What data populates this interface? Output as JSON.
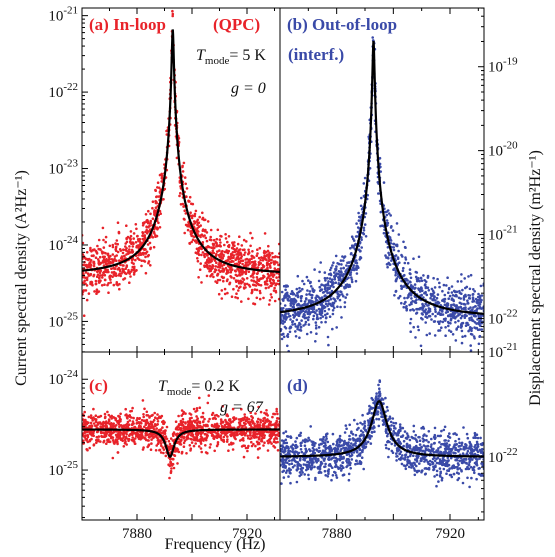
{
  "colors": {
    "in_loop": "#e8232a",
    "out_of_loop": "#3a4aa8",
    "fit": "#000000"
  },
  "texts": {
    "xlabel": "Frequency (Hz)",
    "ylabel_left": "Current spectral density (A²Hz⁻¹)",
    "ylabel_right": "Displacement spectral density (m²Hz⁻¹)",
    "panel_a": "(a) In-loop",
    "panel_a_sub": "(QPC)",
    "panel_b": "(b) Out-of-loop",
    "panel_b_sub": "(interf.)",
    "panel_c": "(c)",
    "panel_d": "(d)",
    "t_mode_top_prefix": "T",
    "t_mode_sub": "mode",
    "t_mode_top_value": "= 5 K",
    "g_top": "g = 0",
    "t_mode_bottom_value": "= 0.2 K",
    "g_bottom": "g = 67"
  },
  "chart_data": [
    {
      "id": "a",
      "type": "scatter",
      "title": "(a) In-loop (QPC)",
      "xlim": [
        7860,
        7932
      ],
      "ylim_exp": [
        -25.4,
        -20.9
      ],
      "yscale": "log",
      "yticks": [
        {
          "exp": -21,
          "label": "10",
          "sup": "-21"
        },
        {
          "exp": -22,
          "label": "10",
          "sup": "-22"
        },
        {
          "exp": -23,
          "label": "10",
          "sup": "-23"
        },
        {
          "exp": -24,
          "label": "10",
          "sup": "-24"
        },
        {
          "exp": -25,
          "label": "10",
          "sup": "-25"
        }
      ],
      "noise_floor": 4e-25,
      "peak": {
        "f0": 7893,
        "height": 6.5e-22,
        "gamma": 0.32,
        "kind": "peak"
      },
      "scatter_spread_dec": 0.17,
      "color_key": "in_loop"
    },
    {
      "id": "b",
      "type": "scatter",
      "title": "(b) Out-of-loop (interf.)",
      "xlim": [
        7860,
        7932
      ],
      "ylim_exp": [
        -22.4,
        -18.3
      ],
      "yscale": "log",
      "yticks": [
        {
          "exp": -19,
          "label": "10",
          "sup": "-19"
        },
        {
          "exp": -20,
          "label": "10",
          "sup": "-20"
        },
        {
          "exp": -21,
          "label": "10",
          "sup": "-21"
        },
        {
          "exp": -22,
          "label": "10",
          "sup": "-22"
        }
      ],
      "noise_floor": 1e-22,
      "peak": {
        "f0": 7893,
        "height": 2e-19,
        "gamma": 0.32,
        "kind": "peak"
      },
      "scatter_spread_dec": 0.17,
      "color_key": "out_of_loop"
    },
    {
      "id": "c",
      "type": "scatter",
      "title": "(c)",
      "xlim": [
        7860,
        7932
      ],
      "ylim_exp": [
        -25.55,
        -23.7
      ],
      "yscale": "log",
      "yticks": [
        {
          "exp": -24,
          "label": "10",
          "sup": "-24"
        },
        {
          "exp": -25,
          "label": "10",
          "sup": "-25"
        }
      ],
      "xticks": [
        7880,
        7920
      ],
      "noise_floor": 2.8e-25,
      "peak": {
        "f0": 7892,
        "depth": 0.5,
        "gamma": 2.2,
        "kind": "dip"
      },
      "scatter_spread_dec": 0.1,
      "color_key": "in_loop"
    },
    {
      "id": "d",
      "type": "scatter",
      "title": "(d)",
      "xlim": [
        7860,
        7932
      ],
      "ylim_exp": [
        -22.6,
        -21.0
      ],
      "yscale": "log",
      "yticks": [
        {
          "exp": -21,
          "label": "10",
          "sup": "-21"
        },
        {
          "exp": -22,
          "label": "10",
          "sup": "-22"
        }
      ],
      "xticks": [
        7880,
        7920
      ],
      "noise_floor": 1e-22,
      "peak": {
        "f0": 7895,
        "height": 2.4e-22,
        "gamma": 2.5,
        "kind": "peak"
      },
      "scatter_spread_dec": 0.1,
      "color_key": "out_of_loop"
    }
  ]
}
